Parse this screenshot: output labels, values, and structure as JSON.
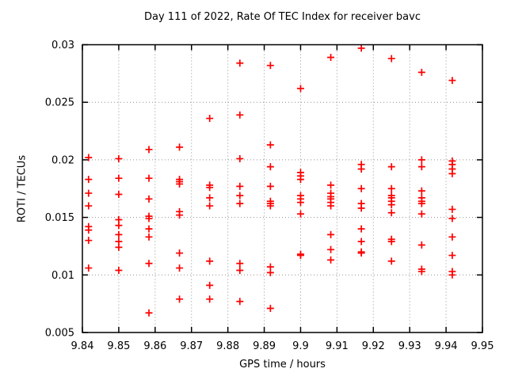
{
  "title": "Day 111 of 2022, Rate Of TEC Index for receiver bavc",
  "chart_data": {
    "type": "scatter",
    "title": "Day 111 of 2022, Rate Of TEC Index for receiver bavc",
    "xlabel": "GPS time / hours",
    "ylabel": "ROTI / TECUs",
    "xlim": [
      9.84,
      9.95
    ],
    "ylim": [
      0.005,
      0.03
    ],
    "xticks": [
      {
        "v": 9.84,
        "label": "9.84"
      },
      {
        "v": 9.85,
        "label": "9.85"
      },
      {
        "v": 9.86,
        "label": "9.86"
      },
      {
        "v": 9.87,
        "label": "9.87"
      },
      {
        "v": 9.88,
        "label": "9.88"
      },
      {
        "v": 9.89,
        "label": "9.89"
      },
      {
        "v": 9.9,
        "label": "9.9"
      },
      {
        "v": 9.91,
        "label": "9.91"
      },
      {
        "v": 9.92,
        "label": "9.92"
      },
      {
        "v": 9.93,
        "label": "9.93"
      },
      {
        "v": 9.94,
        "label": "9.94"
      },
      {
        "v": 9.95,
        "label": "9.95"
      }
    ],
    "yticks": [
      {
        "v": 0.005,
        "label": "0.005"
      },
      {
        "v": 0.01,
        "label": "0.01"
      },
      {
        "v": 0.015,
        "label": "0.015"
      },
      {
        "v": 0.02,
        "label": "0.02"
      },
      {
        "v": 0.025,
        "label": "0.025"
      },
      {
        "v": 0.03,
        "label": "0.03"
      }
    ],
    "grid": true,
    "legend": "none",
    "marker": "plus",
    "marker_color": "#ff0000",
    "grid_color": "#909090",
    "axis_color": "#000000",
    "series": [
      {
        "name": "ROTI",
        "points": [
          [
            9.8417,
            0.0202
          ],
          [
            9.8417,
            0.0183
          ],
          [
            9.8417,
            0.0171
          ],
          [
            9.8417,
            0.016
          ],
          [
            9.8417,
            0.0142
          ],
          [
            9.8417,
            0.0139
          ],
          [
            9.8417,
            0.013
          ],
          [
            9.8417,
            0.0106
          ],
          [
            9.85,
            0.0201
          ],
          [
            9.85,
            0.0184
          ],
          [
            9.85,
            0.017
          ],
          [
            9.85,
            0.0148
          ],
          [
            9.85,
            0.0143
          ],
          [
            9.85,
            0.0135
          ],
          [
            9.85,
            0.0129
          ],
          [
            9.85,
            0.0124
          ],
          [
            9.85,
            0.0104
          ],
          [
            9.8583,
            0.0209
          ],
          [
            9.8583,
            0.0184
          ],
          [
            9.8583,
            0.0166
          ],
          [
            9.8583,
            0.0151
          ],
          [
            9.8583,
            0.0149
          ],
          [
            9.8583,
            0.014
          ],
          [
            9.8583,
            0.0133
          ],
          [
            9.8583,
            0.011
          ],
          [
            9.8583,
            0.0067
          ],
          [
            9.8667,
            0.0211
          ],
          [
            9.8667,
            0.0183
          ],
          [
            9.8667,
            0.0181
          ],
          [
            9.8667,
            0.0179
          ],
          [
            9.8667,
            0.0155
          ],
          [
            9.8667,
            0.0152
          ],
          [
            9.8667,
            0.0119
          ],
          [
            9.8667,
            0.0106
          ],
          [
            9.8667,
            0.0079
          ],
          [
            9.875,
            0.0236
          ],
          [
            9.875,
            0.0178
          ],
          [
            9.875,
            0.0176
          ],
          [
            9.875,
            0.0167
          ],
          [
            9.875,
            0.016
          ],
          [
            9.875,
            0.0112
          ],
          [
            9.875,
            0.0091
          ],
          [
            9.875,
            0.0079
          ],
          [
            9.8833,
            0.0284
          ],
          [
            9.8833,
            0.0239
          ],
          [
            9.8833,
            0.0201
          ],
          [
            9.8833,
            0.0177
          ],
          [
            9.8833,
            0.0169
          ],
          [
            9.8833,
            0.0162
          ],
          [
            9.8833,
            0.011
          ],
          [
            9.8833,
            0.0104
          ],
          [
            9.8833,
            0.0077
          ],
          [
            9.8917,
            0.0282
          ],
          [
            9.8917,
            0.0213
          ],
          [
            9.8917,
            0.0194
          ],
          [
            9.8917,
            0.0177
          ],
          [
            9.8917,
            0.0164
          ],
          [
            9.8917,
            0.0162
          ],
          [
            9.8917,
            0.016
          ],
          [
            9.8917,
            0.0107
          ],
          [
            9.8917,
            0.0102
          ],
          [
            9.8917,
            0.0071
          ],
          [
            9.9,
            0.0262
          ],
          [
            9.9,
            0.0189
          ],
          [
            9.9,
            0.0186
          ],
          [
            9.9,
            0.0183
          ],
          [
            9.9,
            0.0169
          ],
          [
            9.9,
            0.0166
          ],
          [
            9.9,
            0.0163
          ],
          [
            9.9,
            0.0153
          ],
          [
            9.9,
            0.0118
          ],
          [
            9.9,
            0.0117
          ],
          [
            9.9083,
            0.0289
          ],
          [
            9.9083,
            0.0178
          ],
          [
            9.9083,
            0.0171
          ],
          [
            9.9083,
            0.0168
          ],
          [
            9.9083,
            0.0166
          ],
          [
            9.9083,
            0.0163
          ],
          [
            9.9083,
            0.016
          ],
          [
            9.9083,
            0.0135
          ],
          [
            9.9083,
            0.0122
          ],
          [
            9.9083,
            0.0113
          ],
          [
            9.9167,
            0.0297
          ],
          [
            9.9167,
            0.0196
          ],
          [
            9.9167,
            0.0192
          ],
          [
            9.9167,
            0.0175
          ],
          [
            9.9167,
            0.0162
          ],
          [
            9.9167,
            0.0158
          ],
          [
            9.9167,
            0.014
          ],
          [
            9.9167,
            0.0129
          ],
          [
            9.9167,
            0.012
          ],
          [
            9.9167,
            0.0119
          ],
          [
            9.925,
            0.0288
          ],
          [
            9.925,
            0.0194
          ],
          [
            9.925,
            0.0175
          ],
          [
            9.925,
            0.0169
          ],
          [
            9.925,
            0.0167
          ],
          [
            9.925,
            0.0164
          ],
          [
            9.925,
            0.0161
          ],
          [
            9.925,
            0.0154
          ],
          [
            9.925,
            0.0131
          ],
          [
            9.925,
            0.0129
          ],
          [
            9.925,
            0.0112
          ],
          [
            9.9333,
            0.0276
          ],
          [
            9.9333,
            0.02
          ],
          [
            9.9333,
            0.0194
          ],
          [
            9.9333,
            0.0173
          ],
          [
            9.9333,
            0.0167
          ],
          [
            9.9333,
            0.0164
          ],
          [
            9.9333,
            0.0162
          ],
          [
            9.9333,
            0.0153
          ],
          [
            9.9333,
            0.0126
          ],
          [
            9.9333,
            0.0105
          ],
          [
            9.9333,
            0.0103
          ],
          [
            9.9417,
            0.0269
          ],
          [
            9.9417,
            0.0199
          ],
          [
            9.9417,
            0.0196
          ],
          [
            9.9417,
            0.0192
          ],
          [
            9.9417,
            0.0188
          ],
          [
            9.9417,
            0.0157
          ],
          [
            9.9417,
            0.0149
          ],
          [
            9.9417,
            0.0133
          ],
          [
            9.9417,
            0.0117
          ],
          [
            9.9417,
            0.0103
          ],
          [
            9.9417,
            0.01
          ]
        ]
      }
    ]
  }
}
